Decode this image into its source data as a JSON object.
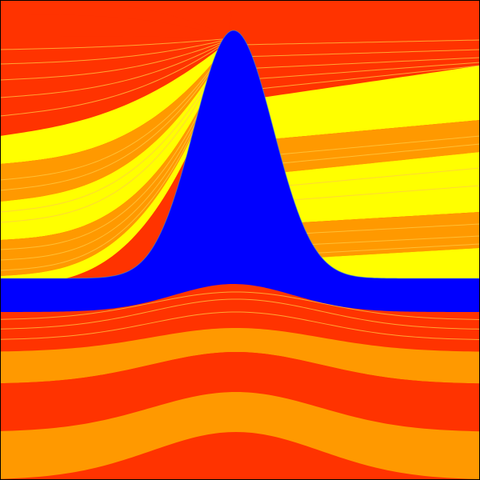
{
  "colors": {
    "red": "#ff3300",
    "orange": "#ff9900",
    "yellow": "#ffff00",
    "blue": "#0000ff",
    "contour": "#ffcc44",
    "border": "#000000"
  },
  "icons": {
    "background": "layered-bands-icon",
    "salt_body": "diapir-icon"
  }
}
